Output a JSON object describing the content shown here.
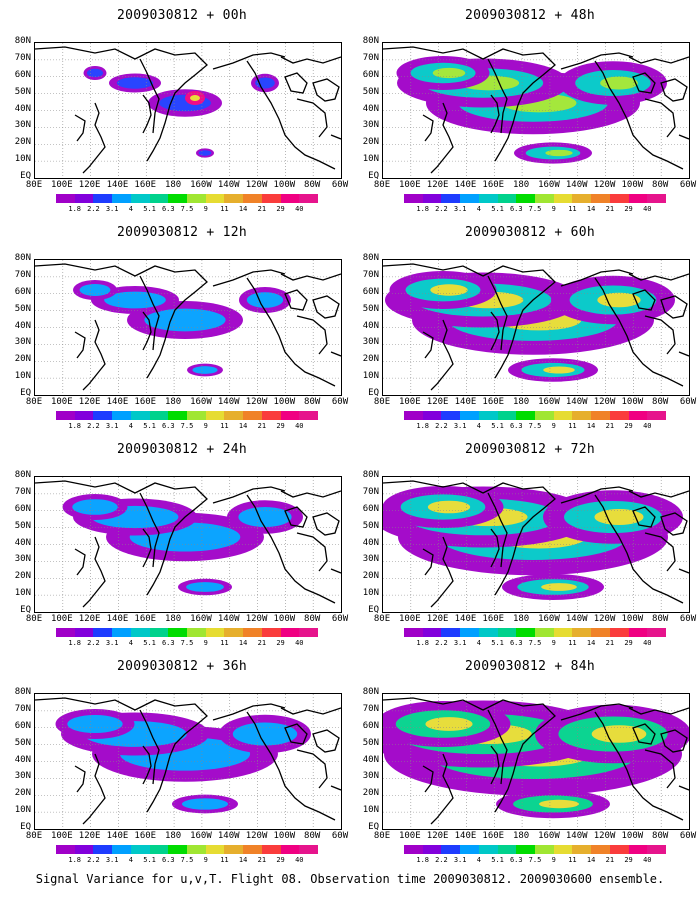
{
  "panels": [
    {
      "title": "2009030812 + 00h",
      "intensity": 0.05
    },
    {
      "title": "2009030812 + 48h",
      "intensity": 0.55
    },
    {
      "title": "2009030812 + 12h",
      "intensity": 0.2
    },
    {
      "title": "2009030812 + 60h",
      "intensity": 0.65
    },
    {
      "title": "2009030812 + 24h",
      "intensity": 0.35
    },
    {
      "title": "2009030812 + 72h",
      "intensity": 0.75
    },
    {
      "title": "2009030812 + 36h",
      "intensity": 0.45
    },
    {
      "title": "2009030812 + 84h",
      "intensity": 0.85
    }
  ],
  "lat_labels": [
    "80N",
    "70N",
    "60N",
    "50N",
    "40N",
    "30N",
    "20N",
    "10N",
    "EQ"
  ],
  "lon_labels": [
    "80E",
    "100E",
    "120E",
    "140E",
    "160E",
    "180",
    "160W",
    "140W",
    "120W",
    "100W",
    "80W",
    "60W"
  ],
  "colorbar": {
    "labels": [
      "1.8",
      "2.2",
      "3.1",
      "4",
      "5.1",
      "6.3",
      "7.5",
      "9",
      "11",
      "14",
      "21",
      "29",
      "40"
    ],
    "colors": [
      "#a000c8",
      "#8200dc",
      "#1e3cff",
      "#00a0ff",
      "#00c8c8",
      "#00d28c",
      "#00dc00",
      "#a0e632",
      "#e6dc32",
      "#e6af2d",
      "#f08228",
      "#fa3c3c",
      "#f00082",
      "#e6148c"
    ]
  },
  "footer": "Signal Variance for u,v,T. Flight 08. Observation time 2009030812. 2009030600 ensemble."
}
